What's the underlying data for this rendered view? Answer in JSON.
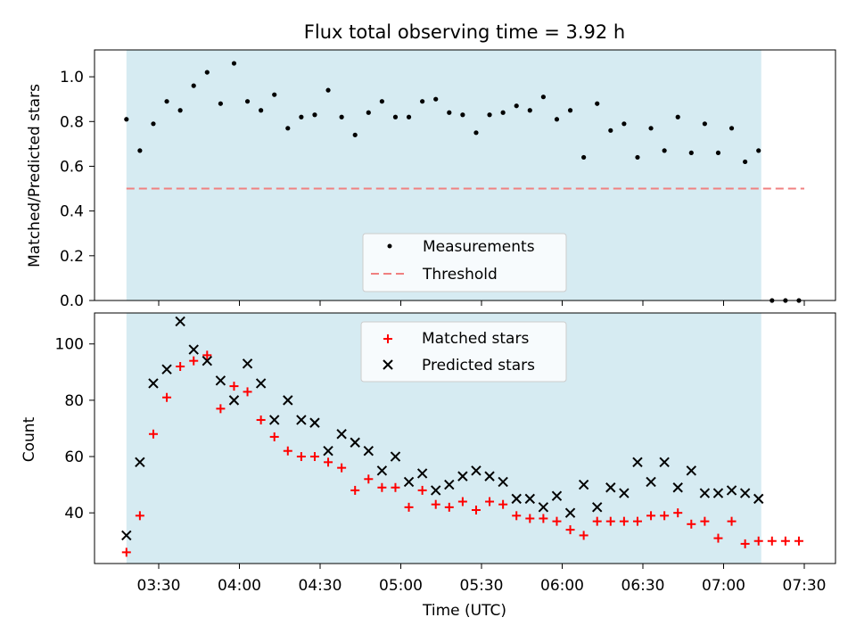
{
  "colors": {
    "shade": "#add8e6",
    "measurement": "#000000",
    "threshold": "#f08080",
    "matched": "#ff0000",
    "predicted": "#000000"
  },
  "chart_data": {
    "title": "Flux total observing time = 3.92 h",
    "xlabel": "Time (UTC)",
    "x_ticks": [
      "03:30",
      "04:00",
      "04:30",
      "05:00",
      "05:30",
      "06:00",
      "06:30",
      "07:00",
      "07:30"
    ],
    "shaded_interval": {
      "start": "03:18",
      "end": "07:14"
    },
    "top": {
      "type": "scatter",
      "ylabel": "Matched/Predicted stars",
      "ylim": [
        0,
        1.12
      ],
      "y_ticks": [
        "0.0",
        "0.2",
        "0.4",
        "0.6",
        "0.8",
        "1.0"
      ],
      "threshold": 0.5,
      "threshold_range": {
        "start": "03:18",
        "end": "07:30"
      },
      "legend": {
        "placement": "lower-center",
        "measurements": "Measurements",
        "threshold": "Threshold"
      },
      "x": [
        "03:18",
        "03:23",
        "03:28",
        "03:33",
        "03:38",
        "03:43",
        "03:48",
        "03:53",
        "03:58",
        "04:03",
        "04:08",
        "04:13",
        "04:18",
        "04:23",
        "04:28",
        "04:33",
        "04:38",
        "04:43",
        "04:48",
        "04:53",
        "04:58",
        "05:03",
        "05:08",
        "05:13",
        "05:18",
        "05:23",
        "05:28",
        "05:33",
        "05:38",
        "05:43",
        "05:48",
        "05:53",
        "05:58",
        "06:03",
        "06:08",
        "06:13",
        "06:18",
        "06:23",
        "06:28",
        "06:33",
        "06:38",
        "06:43",
        "06:48",
        "06:53",
        "06:58",
        "07:03",
        "07:08",
        "07:13",
        "07:18",
        "07:23",
        "07:28"
      ],
      "values": [
        0.81,
        0.67,
        0.79,
        0.89,
        0.85,
        0.96,
        1.02,
        0.88,
        1.06,
        0.89,
        0.85,
        0.92,
        0.77,
        0.82,
        0.83,
        0.94,
        0.82,
        0.74,
        0.84,
        0.89,
        0.82,
        0.82,
        0.89,
        0.9,
        0.84,
        0.83,
        0.75,
        0.83,
        0.84,
        0.87,
        0.85,
        0.91,
        0.81,
        0.85,
        0.64,
        0.88,
        0.76,
        0.79,
        0.64,
        0.77,
        0.67,
        0.82,
        0.66,
        0.79,
        0.66,
        0.77,
        0.62,
        0.67,
        0.0,
        0.0,
        0.0
      ]
    },
    "bottom": {
      "type": "scatter",
      "ylabel": "Count",
      "ylim": [
        22,
        111
      ],
      "y_ticks": [
        "40",
        "60",
        "80",
        "100"
      ],
      "legend": {
        "placement": "upper-center",
        "matched": "Matched stars",
        "predicted": "Predicted stars"
      },
      "matched": {
        "x": [
          "03:18",
          "03:23",
          "03:28",
          "03:33",
          "03:38",
          "03:43",
          "03:48",
          "03:53",
          "03:58",
          "04:03",
          "04:08",
          "04:13",
          "04:18",
          "04:23",
          "04:28",
          "04:33",
          "04:38",
          "04:43",
          "04:48",
          "04:53",
          "04:58",
          "05:03",
          "05:08",
          "05:13",
          "05:18",
          "05:23",
          "05:28",
          "05:33",
          "05:38",
          "05:43",
          "05:48",
          "05:53",
          "05:58",
          "06:03",
          "06:08",
          "06:13",
          "06:18",
          "06:23",
          "06:28",
          "06:33",
          "06:38",
          "06:43",
          "06:48",
          "06:53",
          "06:58",
          "07:03",
          "07:08",
          "07:13",
          "07:18",
          "07:23",
          "07:28"
        ],
        "values": [
          26,
          39,
          68,
          81,
          92,
          94,
          96,
          77,
          85,
          83,
          73,
          67,
          62,
          60,
          60,
          58,
          56,
          48,
          52,
          49,
          49,
          42,
          48,
          43,
          42,
          44,
          41,
          44,
          43,
          39,
          38,
          38,
          37,
          34,
          32,
          37,
          37,
          37,
          37,
          39,
          39,
          40,
          36,
          37,
          31,
          37,
          29,
          30,
          30,
          30,
          30
        ]
      },
      "predicted": {
        "x": [
          "03:18",
          "03:23",
          "03:28",
          "03:33",
          "03:38",
          "03:43",
          "03:48",
          "03:53",
          "03:58",
          "04:03",
          "04:08",
          "04:13",
          "04:18",
          "04:23",
          "04:28",
          "04:33",
          "04:38",
          "04:43",
          "04:48",
          "04:53",
          "04:58",
          "05:03",
          "05:08",
          "05:13",
          "05:18",
          "05:23",
          "05:28",
          "05:33",
          "05:38",
          "05:43",
          "05:48",
          "05:53",
          "05:58",
          "06:03",
          "06:08",
          "06:13",
          "06:18",
          "06:23",
          "06:28",
          "06:33",
          "06:38",
          "06:43",
          "06:48",
          "06:53",
          "06:58",
          "07:03",
          "07:08",
          "07:13"
        ],
        "values": [
          32,
          58,
          86,
          91,
          108,
          98,
          94,
          87,
          80,
          93,
          86,
          73,
          80,
          73,
          72,
          62,
          68,
          65,
          62,
          55,
          60,
          51,
          54,
          48,
          50,
          53,
          55,
          53,
          51,
          45,
          45,
          42,
          46,
          40,
          50,
          42,
          49,
          47,
          58,
          51,
          58,
          49,
          55,
          47,
          47,
          48,
          47,
          45
        ]
      }
    }
  }
}
